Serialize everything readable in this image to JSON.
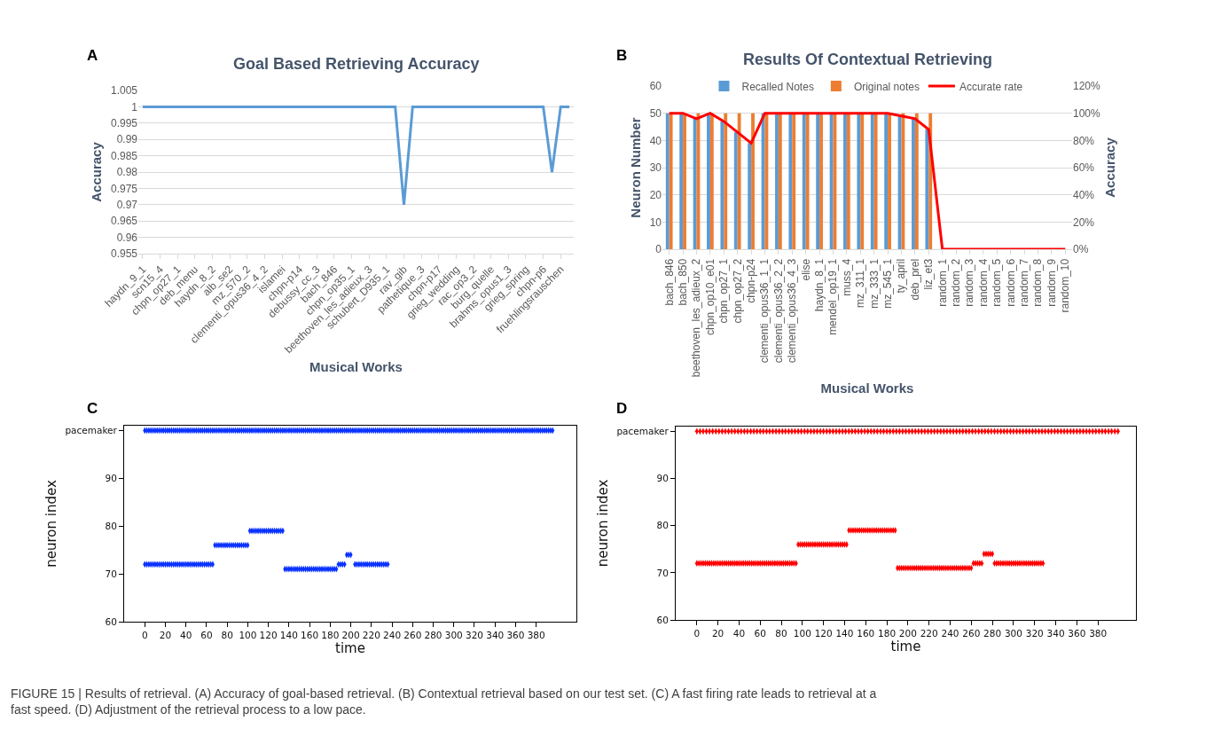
{
  "chart_data": [
    {
      "type": "line",
      "title": "Goal Based Retrieving Accuracy",
      "xlabel": "Musical Works",
      "ylabel": "Accuracy",
      "annotations": [
        "A"
      ],
      "categories": [
        "haydn_9_1",
        null,
        "scn15_4",
        null,
        "chpn_op27_1",
        null,
        "deb_menu",
        null,
        "haydn_8_2",
        null,
        "alb_se2",
        null,
        "mz_570_2",
        null,
        "clementi_opus36_4_2",
        null,
        "islamei",
        null,
        "chpn-p14",
        null,
        "debussy_cc_3",
        null,
        "bach_846",
        null,
        "chpn_op35_1",
        null,
        "beethoven_les_adieux_3",
        null,
        "schubert_D935_1",
        null,
        "rav_gib",
        null,
        "pathetique_3",
        null,
        "chpn-p17",
        null,
        "grieg_wedding",
        null,
        "rac_op3_2",
        null,
        "burg_quelle",
        null,
        "brahms_opus1_3",
        null,
        "grieg_spring",
        null,
        "chpn-p6",
        null,
        "fruehlingsrauschen",
        null
      ],
      "series": [
        {
          "color": "#5b9bd5",
          "values": [
            1,
            1,
            1,
            1,
            1,
            1,
            1,
            1,
            1,
            1,
            1,
            1,
            1,
            1,
            1,
            1,
            1,
            1,
            1,
            1,
            1,
            1,
            1,
            1,
            1,
            1,
            1,
            1,
            1,
            1,
            0.97,
            1,
            1,
            1,
            1,
            1,
            1,
            1,
            1,
            1,
            1,
            1,
            1,
            1,
            1,
            1,
            1,
            0.98,
            1,
            1
          ]
        }
      ],
      "ylim": [
        0.955,
        1.005
      ],
      "yticks": [
        0.955,
        0.96,
        0.965,
        0.97,
        0.975,
        0.98,
        0.985,
        0.99,
        0.995,
        1,
        1.005
      ],
      "grid": "y"
    },
    {
      "type": "bar",
      "title": "Results Of Contextual Retrieving",
      "xlabel": "Musical Works",
      "ylabel": "Neuron Number",
      "y2label": "Accuracy",
      "annotations": [
        "B"
      ],
      "categories": [
        "bach_846",
        "bach_850",
        "beethoven_les_adieux_2",
        "chpn_op10_e01",
        "chpn_op27_1",
        "chpn_op27_2",
        "chpn-p24",
        "clementi_opus36_1_1",
        "clementi_opus36_2_2",
        "clementi_opus36_4_3",
        "elise",
        "haydn_8_1",
        "mendel_op19_1",
        "muss_4",
        "mz_311_1",
        "mz_333_1",
        "mz_545_1",
        "ty_april",
        "deb_prel",
        "liz_et3",
        "random_1",
        "random_2",
        "random_3",
        "random_4",
        "random_5",
        "random_6",
        "random_7",
        "random_8",
        "random_9",
        "random_10"
      ],
      "series": [
        {
          "name": "Recalled Notes",
          "color": "#5b9bd5",
          "values": [
            50,
            50,
            48,
            50,
            47,
            43,
            39,
            50,
            50,
            50,
            50,
            50,
            50,
            50,
            50,
            50,
            50,
            49,
            48,
            44,
            0,
            0,
            0,
            0,
            0,
            0,
            0,
            0,
            0,
            0
          ]
        },
        {
          "name": "Original notes",
          "color": "#ed7d31",
          "values": [
            50,
            50,
            50,
            50,
            50,
            50,
            50,
            50,
            50,
            50,
            50,
            50,
            50,
            50,
            50,
            50,
            50,
            50,
            50,
            50,
            0,
            0,
            0,
            0,
            0,
            0,
            0,
            0,
            0,
            0
          ]
        },
        {
          "name": "Accurate rate",
          "type": "line",
          "axis": "y2",
          "color": "#ff0000",
          "values": [
            100,
            100,
            96,
            100,
            94,
            86,
            78,
            100,
            100,
            100,
            100,
            100,
            100,
            100,
            100,
            100,
            100,
            98,
            96,
            88,
            0,
            0,
            0,
            0,
            0,
            0,
            0,
            0,
            0,
            0
          ]
        }
      ],
      "ylim": [
        0,
        60
      ],
      "yticks": [
        0,
        10,
        20,
        30,
        40,
        50,
        60
      ],
      "y2lim": [
        0,
        120
      ],
      "y2ticks": [
        {
          "value": 0,
          "label": "0%"
        },
        {
          "value": 20,
          "label": "20%"
        },
        {
          "value": 40,
          "label": "40%"
        },
        {
          "value": 60,
          "label": "60%"
        },
        {
          "value": 80,
          "label": "80%"
        },
        {
          "value": 100,
          "label": "100%"
        },
        {
          "value": 120,
          "label": "120%"
        }
      ],
      "grid": "y",
      "legend": "top"
    },
    {
      "type": "scatter",
      "xlabel": "time",
      "ylabel": "neuron index",
      "annotations": [
        "C"
      ],
      "series": [
        {
          "color": "#0a32ff",
          "x": [
            0,
            2,
            4,
            6,
            8,
            10,
            12,
            14,
            16,
            18,
            20,
            22,
            24,
            26,
            28,
            30,
            32,
            34,
            36,
            38,
            40,
            42,
            44,
            46,
            48,
            50,
            52,
            54,
            56,
            58,
            60,
            62,
            64,
            66,
            68,
            70,
            72,
            74,
            76,
            78,
            80,
            82,
            84,
            86,
            88,
            90,
            92,
            94,
            96,
            98,
            100,
            102,
            104,
            106,
            108,
            110,
            112,
            114,
            116,
            118,
            120,
            122,
            124,
            126,
            128,
            130,
            132,
            134,
            136,
            138,
            140,
            142,
            144,
            146,
            148,
            150,
            152,
            154,
            156,
            158,
            160,
            162,
            164,
            166,
            168,
            170,
            172,
            174,
            176,
            178,
            180,
            182,
            184,
            186,
            188,
            190,
            192,
            194,
            196,
            198,
            200,
            202,
            204,
            206,
            208,
            210,
            212,
            214,
            216,
            218,
            220,
            222,
            224,
            226,
            228,
            230,
            232,
            234,
            236,
            238,
            240,
            242,
            244,
            246,
            248,
            250,
            252,
            254,
            256,
            258,
            260,
            262,
            264,
            266,
            268,
            270,
            272,
            274,
            276,
            278,
            280,
            282,
            284,
            286,
            288,
            290,
            292,
            294,
            296,
            298,
            300,
            302,
            304,
            306,
            308,
            310,
            312,
            314,
            316,
            318,
            320,
            322,
            324,
            326,
            328,
            330,
            332,
            334,
            336,
            338,
            340,
            342,
            344,
            346,
            348,
            350,
            352,
            354,
            356,
            358,
            360,
            362,
            364,
            366,
            368,
            370,
            372,
            374,
            376,
            378,
            380,
            382,
            384,
            386,
            388,
            390,
            392,
            394,
            396
          ],
          "values": [
            100,
            100,
            100,
            100,
            100,
            100,
            100,
            100,
            100,
            100,
            100,
            100,
            100,
            100,
            100,
            100,
            100,
            100,
            100,
            100,
            100,
            100,
            100,
            100,
            100,
            100,
            100,
            100,
            100,
            100,
            100,
            100,
            100,
            100,
            100,
            100,
            100,
            100,
            100,
            100,
            100,
            100,
            100,
            100,
            100,
            100,
            100,
            100,
            100,
            100,
            100,
            100,
            100,
            100,
            100,
            100,
            100,
            100,
            100,
            100,
            100,
            100,
            100,
            100,
            100,
            100,
            100,
            100,
            100,
            100,
            100,
            100,
            100,
            100,
            100,
            100,
            100,
            100,
            100,
            100,
            100,
            100,
            100,
            100,
            100,
            100,
            100,
            100,
            100,
            100,
            100,
            100,
            100,
            100,
            100,
            100,
            100,
            100,
            100,
            100,
            100,
            100,
            100,
            100,
            100,
            100,
            100,
            100,
            100,
            100,
            100,
            100,
            100,
            100,
            100,
            100,
            100,
            100,
            100,
            100,
            100,
            100,
            100,
            100,
            100,
            100,
            100,
            100,
            100,
            100,
            100,
            100,
            100,
            100,
            100,
            100,
            100,
            100,
            100,
            100,
            100,
            100,
            100,
            100,
            100,
            100,
            100,
            100,
            100,
            100,
            100,
            100,
            100,
            100,
            100,
            100,
            100,
            100,
            100,
            100,
            100,
            100,
            100,
            100,
            100,
            100,
            100,
            100,
            100,
            100,
            100,
            100,
            100,
            100,
            100,
            100,
            100,
            100,
            100,
            100,
            100,
            100,
            100,
            100,
            100,
            100,
            100,
            100,
            100,
            100,
            100,
            100,
            100,
            100,
            100,
            100,
            100,
            100,
            100
          ]
        },
        {
          "color": "#0a32ff",
          "x": [
            0,
            2,
            4,
            6,
            8,
            10,
            12,
            14,
            16,
            18,
            20,
            22,
            24,
            26,
            28,
            30,
            32,
            34,
            36,
            38,
            40,
            42,
            44,
            46,
            48,
            50,
            52,
            54,
            56,
            58,
            60,
            62,
            64,
            66
          ],
          "values": [
            72,
            72,
            72,
            72,
            72,
            72,
            72,
            72,
            72,
            72,
            72,
            72,
            72,
            72,
            72,
            72,
            72,
            72,
            72,
            72,
            72,
            72,
            72,
            72,
            72,
            72,
            72,
            72,
            72,
            72,
            72,
            72,
            72,
            72
          ]
        },
        {
          "color": "#0a32ff",
          "x": [
            68,
            70,
            72,
            74,
            76,
            78,
            80,
            82,
            84,
            86,
            88,
            90,
            92,
            94,
            96,
            98,
            100
          ],
          "values": [
            76,
            76,
            76,
            76,
            76,
            76,
            76,
            76,
            76,
            76,
            76,
            76,
            76,
            76,
            76,
            76,
            76
          ]
        },
        {
          "color": "#0a32ff",
          "x": [
            102,
            104,
            106,
            108,
            110,
            112,
            114,
            116,
            118,
            120,
            122,
            124,
            126,
            128,
            130,
            132,
            134
          ],
          "values": [
            79,
            79,
            79,
            79,
            79,
            79,
            79,
            79,
            79,
            79,
            79,
            79,
            79,
            79,
            79,
            79,
            79
          ]
        },
        {
          "color": "#0a32ff",
          "x": [
            136,
            138,
            140,
            142,
            144,
            146,
            148,
            150,
            152,
            154,
            156,
            158,
            160,
            162,
            164,
            166,
            168,
            170,
            172,
            174,
            176,
            178,
            180,
            182,
            184,
            186
          ],
          "values": [
            71,
            71,
            71,
            71,
            71,
            71,
            71,
            71,
            71,
            71,
            71,
            71,
            71,
            71,
            71,
            71,
            71,
            71,
            71,
            71,
            71,
            71,
            71,
            71,
            71,
            71
          ]
        },
        {
          "color": "#0a32ff",
          "x": [
            188,
            190,
            192,
            194
          ],
          "values": [
            72,
            72,
            72,
            72
          ]
        },
        {
          "color": "#0a32ff",
          "x": [
            196,
            198,
            200
          ],
          "values": [
            74,
            74,
            74
          ]
        },
        {
          "color": "#0a32ff",
          "x": [
            204,
            206,
            208,
            210,
            212,
            214,
            216,
            218,
            220,
            222,
            224,
            226,
            228,
            230,
            232,
            234,
            236
          ],
          "values": [
            72,
            72,
            72,
            72,
            72,
            72,
            72,
            72,
            72,
            72,
            72,
            72,
            72,
            72,
            72,
            72,
            72
          ]
        }
      ],
      "xlim": [
        -20,
        419
      ],
      "xticks": [
        0,
        20,
        40,
        60,
        80,
        100,
        120,
        140,
        160,
        180,
        200,
        220,
        240,
        260,
        280,
        300,
        320,
        340,
        360,
        380
      ],
      "ylim": [
        60,
        101
      ],
      "yticks": [
        60,
        70,
        80,
        90,
        {
          "value": 100,
          "label": "pacemaker"
        }
      ]
    },
    {
      "type": "scatter",
      "xlabel": "time",
      "ylabel": "neuron index",
      "annotations": [
        "D",
        "FIGURE 15 | Results of retrieval. (A) Accuracy of goal-based retrieval. (B) Contextual retrieval based on our test set. (C) A fast firing rate leads to retrieval at a fast speed. (D) Adjustment of the retrieval process to a low pace."
      ],
      "series": [
        {
          "color": "#ff0000",
          "x": [
            0,
            3,
            6,
            9,
            12,
            15,
            18,
            21,
            24,
            27,
            30,
            33,
            36,
            39,
            42,
            45,
            48,
            51,
            54,
            57,
            60,
            63,
            66,
            69,
            72,
            75,
            78,
            81,
            84,
            87,
            90,
            93,
            96,
            99,
            102,
            105,
            108,
            111,
            114,
            117,
            120,
            123,
            126,
            129,
            132,
            135,
            138,
            141,
            144,
            147,
            150,
            153,
            156,
            159,
            162,
            165,
            168,
            171,
            174,
            177,
            180,
            183,
            186,
            189,
            192,
            195,
            198,
            201,
            204,
            207,
            210,
            213,
            216,
            219,
            222,
            225,
            228,
            231,
            234,
            237,
            240,
            243,
            246,
            249,
            252,
            255,
            258,
            261,
            264,
            267,
            270,
            273,
            276,
            279,
            282,
            285,
            288,
            291,
            294,
            297,
            300,
            303,
            306,
            309,
            312,
            315,
            318,
            321,
            324,
            327,
            330,
            333,
            336,
            339,
            342,
            345,
            348,
            351,
            354,
            357,
            360,
            363,
            366,
            369,
            372,
            375,
            378,
            381,
            384,
            387,
            390,
            393,
            396,
            399
          ],
          "values": [
            100,
            100,
            100,
            100,
            100,
            100,
            100,
            100,
            100,
            100,
            100,
            100,
            100,
            100,
            100,
            100,
            100,
            100,
            100,
            100,
            100,
            100,
            100,
            100,
            100,
            100,
            100,
            100,
            100,
            100,
            100,
            100,
            100,
            100,
            100,
            100,
            100,
            100,
            100,
            100,
            100,
            100,
            100,
            100,
            100,
            100,
            100,
            100,
            100,
            100,
            100,
            100,
            100,
            100,
            100,
            100,
            100,
            100,
            100,
            100,
            100,
            100,
            100,
            100,
            100,
            100,
            100,
            100,
            100,
            100,
            100,
            100,
            100,
            100,
            100,
            100,
            100,
            100,
            100,
            100,
            100,
            100,
            100,
            100,
            100,
            100,
            100,
            100,
            100,
            100,
            100,
            100,
            100,
            100,
            100,
            100,
            100,
            100,
            100,
            100,
            100,
            100,
            100,
            100,
            100,
            100,
            100,
            100,
            100,
            100,
            100,
            100,
            100,
            100,
            100,
            100,
            100,
            100,
            100,
            100,
            100,
            100,
            100,
            100,
            100,
            100,
            100,
            100,
            100,
            100,
            100,
            100,
            100,
            100
          ]
        },
        {
          "color": "#ff0000",
          "x": [
            0,
            2,
            4,
            6,
            8,
            10,
            12,
            14,
            16,
            18,
            20,
            22,
            24,
            26,
            28,
            30,
            32,
            34,
            36,
            38,
            40,
            42,
            44,
            46,
            48,
            50,
            52,
            54,
            56,
            58,
            60,
            62,
            64,
            66,
            68,
            70,
            72,
            74,
            76,
            78,
            80,
            82,
            84,
            86,
            88,
            90,
            92,
            94
          ],
          "values": [
            72,
            72,
            72,
            72,
            72,
            72,
            72,
            72,
            72,
            72,
            72,
            72,
            72,
            72,
            72,
            72,
            72,
            72,
            72,
            72,
            72,
            72,
            72,
            72,
            72,
            72,
            72,
            72,
            72,
            72,
            72,
            72,
            72,
            72,
            72,
            72,
            72,
            72,
            72,
            72,
            72,
            72,
            72,
            72,
            72,
            72,
            72,
            72
          ]
        },
        {
          "color": "#ff0000",
          "x": [
            96,
            98,
            100,
            102,
            104,
            106,
            108,
            110,
            112,
            114,
            116,
            118,
            120,
            122,
            124,
            126,
            128,
            130,
            132,
            134,
            136,
            138,
            140,
            142
          ],
          "values": [
            76,
            76,
            76,
            76,
            76,
            76,
            76,
            76,
            76,
            76,
            76,
            76,
            76,
            76,
            76,
            76,
            76,
            76,
            76,
            76,
            76,
            76,
            76,
            76
          ]
        },
        {
          "color": "#ff0000",
          "x": [
            144,
            146,
            148,
            150,
            152,
            154,
            156,
            158,
            160,
            162,
            164,
            166,
            168,
            170,
            172,
            174,
            176,
            178,
            180,
            182,
            184,
            186,
            188
          ],
          "values": [
            79,
            79,
            79,
            79,
            79,
            79,
            79,
            79,
            79,
            79,
            79,
            79,
            79,
            79,
            79,
            79,
            79,
            79,
            79,
            79,
            79,
            79,
            79
          ]
        },
        {
          "color": "#ff0000",
          "x": [
            190,
            192,
            194,
            196,
            198,
            200,
            202,
            204,
            206,
            208,
            210,
            212,
            214,
            216,
            218,
            220,
            222,
            224,
            226,
            228,
            230,
            232,
            234,
            236,
            238,
            240,
            242,
            244,
            246,
            248,
            250,
            252,
            254,
            256,
            258,
            260
          ],
          "values": [
            71,
            71,
            71,
            71,
            71,
            71,
            71,
            71,
            71,
            71,
            71,
            71,
            71,
            71,
            71,
            71,
            71,
            71,
            71,
            71,
            71,
            71,
            71,
            71,
            71,
            71,
            71,
            71,
            71,
            71,
            71,
            71,
            71,
            71,
            71,
            71
          ]
        },
        {
          "color": "#ff0000",
          "x": [
            262,
            264,
            266,
            268,
            270
          ],
          "values": [
            72,
            72,
            72,
            72,
            72
          ]
        },
        {
          "color": "#ff0000",
          "x": [
            272,
            274,
            276,
            278,
            280
          ],
          "values": [
            74,
            74,
            74,
            74,
            74
          ]
        },
        {
          "color": "#ff0000",
          "x": [
            282,
            284,
            286,
            288,
            290,
            292,
            294,
            296,
            298,
            300,
            302,
            304,
            306,
            308,
            310,
            312,
            314,
            316,
            318,
            320,
            322,
            324,
            326,
            328
          ],
          "values": [
            72,
            72,
            72,
            72,
            72,
            72,
            72,
            72,
            72,
            72,
            72,
            72,
            72,
            72,
            72,
            72,
            72,
            72,
            72,
            72,
            72,
            72,
            72,
            72
          ]
        }
      ],
      "xlim": [
        -20,
        416
      ],
      "xticks": [
        0,
        20,
        40,
        60,
        80,
        100,
        120,
        140,
        160,
        180,
        200,
        220,
        240,
        260,
        280,
        300,
        320,
        340,
        360,
        380
      ],
      "ylim": [
        60,
        101
      ],
      "yticks": [
        60,
        70,
        80,
        90,
        {
          "value": 100,
          "label": "pacemaker"
        }
      ]
    }
  ]
}
